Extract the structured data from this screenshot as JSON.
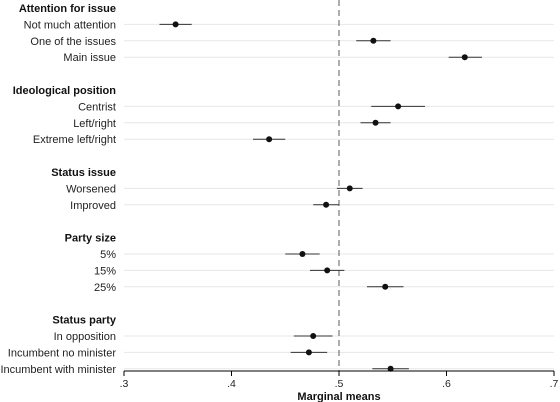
{
  "chart_data": {
    "type": "scatter",
    "xlabel": "Marginal means",
    "xlim": [
      0.3,
      0.7
    ],
    "xticks": [
      0.3,
      0.4,
      0.5,
      0.6,
      0.7
    ],
    "xtick_labels": [
      ".3",
      ".4",
      ".5",
      ".6",
      ".7"
    ],
    "reference_line": 0.5,
    "grid": true,
    "groups": [
      {
        "label": "Attention for issue",
        "items": [
          {
            "label": "Not much attention",
            "estimate": 0.348,
            "ci": [
              0.333,
              0.363
            ]
          },
          {
            "label": "One of the issues",
            "estimate": 0.532,
            "ci": [
              0.516,
              0.548
            ]
          },
          {
            "label": "Main issue",
            "estimate": 0.617,
            "ci": [
              0.602,
              0.633
            ]
          }
        ]
      },
      {
        "label": "Ideological position",
        "items": [
          {
            "label": "Centrist",
            "estimate": 0.555,
            "ci": [
              0.53,
              0.58
            ]
          },
          {
            "label": "Left/right",
            "estimate": 0.534,
            "ci": [
              0.52,
              0.548
            ]
          },
          {
            "label": "Extreme left/right",
            "estimate": 0.435,
            "ci": [
              0.42,
              0.45
            ]
          }
        ]
      },
      {
        "label": "Status issue",
        "items": [
          {
            "label": "Worsened",
            "estimate": 0.51,
            "ci": [
              0.498,
              0.522
            ]
          },
          {
            "label": "Improved",
            "estimate": 0.488,
            "ci": [
              0.476,
              0.5
            ]
          }
        ]
      },
      {
        "label": "Party size",
        "items": [
          {
            "label": "5%",
            "estimate": 0.466,
            "ci": [
              0.45,
              0.482
            ]
          },
          {
            "label": "15%",
            "estimate": 0.489,
            "ci": [
              0.473,
              0.505
            ]
          },
          {
            "label": "25%",
            "estimate": 0.543,
            "ci": [
              0.526,
              0.56
            ]
          }
        ]
      },
      {
        "label": "Status party",
        "items": [
          {
            "label": "In opposition",
            "estimate": 0.476,
            "ci": [
              0.458,
              0.494
            ]
          },
          {
            "label": "Incumbent no minister",
            "estimate": 0.472,
            "ci": [
              0.455,
              0.489
            ]
          },
          {
            "label": "Incumbent with minister",
            "estimate": 0.548,
            "ci": [
              0.531,
              0.565
            ]
          }
        ]
      }
    ]
  }
}
